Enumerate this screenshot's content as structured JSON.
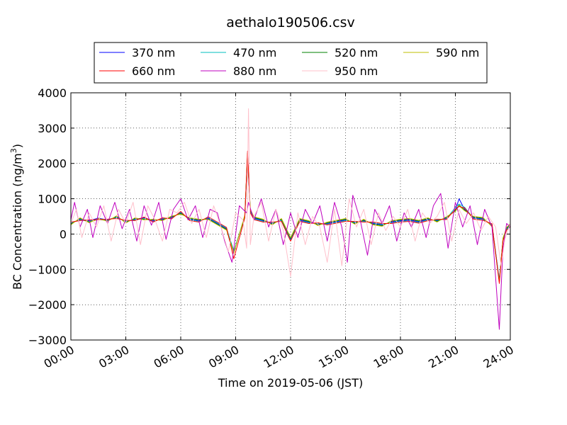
{
  "chart_data": {
    "type": "line",
    "title": "aethalo190506.csv",
    "xlabel": "Time on 2019-05-06 (JST)",
    "ylabel_main": "BC Concentration (ng/m",
    "ylabel_sup": "3",
    "ylabel_close": ")",
    "xlim": [
      0,
      24
    ],
    "ylim": [
      -3000,
      4000
    ],
    "x_ticks": [
      {
        "value": 0,
        "label": "00:00"
      },
      {
        "value": 3,
        "label": "03:00"
      },
      {
        "value": 6,
        "label": "06:00"
      },
      {
        "value": 9,
        "label": "09:00"
      },
      {
        "value": 12,
        "label": "12:00"
      },
      {
        "value": 15,
        "label": "15:00"
      },
      {
        "value": 18,
        "label": "18:00"
      },
      {
        "value": 21,
        "label": "21:00"
      },
      {
        "value": 24,
        "label": "24:00"
      }
    ],
    "y_ticks": [
      {
        "value": 4000,
        "label": "4000"
      },
      {
        "value": 3000,
        "label": "3000"
      },
      {
        "value": 2000,
        "label": "2000"
      },
      {
        "value": 1000,
        "label": "1000"
      },
      {
        "value": 0,
        "label": "0"
      },
      {
        "value": -1000,
        "label": "−1000"
      },
      {
        "value": -2000,
        "label": "−2000"
      },
      {
        "value": -3000,
        "label": "−3000"
      }
    ],
    "grid": true,
    "legend_position": "top",
    "legend_columns": 4,
    "series": [
      {
        "name": "370 nm",
        "color": "#0000ff",
        "x": [
          0,
          0.5,
          1,
          1.5,
          2,
          2.5,
          3,
          3.5,
          4,
          4.5,
          5,
          5.5,
          6,
          6.5,
          7,
          7.5,
          8,
          8.5,
          8.9,
          9.5,
          9.65,
          9.8,
          10,
          10.5,
          11,
          11.5,
          12,
          12.5,
          13,
          13.5,
          14,
          14.5,
          15,
          15.5,
          16,
          16.5,
          17,
          17.5,
          18,
          18.5,
          19,
          19.5,
          20,
          20.5,
          21,
          21.2,
          21.5,
          22,
          22.5,
          23,
          23.4,
          23.6,
          23.8,
          24
        ],
        "y": [
          300,
          420,
          380,
          450,
          400,
          480,
          350,
          420,
          460,
          380,
          420,
          470,
          600,
          420,
          380,
          450,
          300,
          150,
          -500,
          500,
          2200,
          650,
          450,
          380,
          300,
          400,
          -150,
          400,
          340,
          280,
          300,
          350,
          400,
          320,
          380,
          300,
          260,
          340,
          380,
          400,
          350,
          420,
          380,
          450,
          680,
          1000,
          700,
          460,
          430,
          250,
          -1300,
          -150,
          150,
          250
        ]
      },
      {
        "name": "470 nm",
        "color": "#00bfbf",
        "x": [
          0,
          0.5,
          1,
          1.5,
          2,
          2.5,
          3,
          3.5,
          4,
          4.5,
          5,
          5.5,
          6,
          6.5,
          7,
          7.5,
          8,
          8.5,
          8.9,
          9.5,
          9.65,
          9.8,
          10,
          10.5,
          11,
          11.5,
          12,
          12.5,
          13,
          13.5,
          14,
          14.5,
          15,
          15.5,
          16,
          16.5,
          17,
          17.5,
          18,
          18.5,
          19,
          19.5,
          20,
          20.5,
          21,
          21.2,
          21.5,
          22,
          22.5,
          23,
          23.4,
          23.6,
          23.8,
          24
        ],
        "y": [
          320,
          400,
          360,
          430,
          410,
          460,
          370,
          400,
          440,
          360,
          440,
          450,
          620,
          400,
          360,
          470,
          320,
          170,
          -480,
          480,
          2300,
          620,
          430,
          360,
          320,
          380,
          -180,
          380,
          320,
          300,
          280,
          330,
          380,
          340,
          360,
          320,
          280,
          320,
          360,
          380,
          330,
          400,
          400,
          430,
          750,
          850,
          760,
          440,
          410,
          270,
          -1320,
          -170,
          130,
          230
        ]
      },
      {
        "name": "520 nm",
        "color": "#008000",
        "x": [
          0,
          0.5,
          1,
          1.5,
          2,
          2.5,
          3,
          3.5,
          4,
          4.5,
          5,
          5.5,
          6,
          6.5,
          7,
          7.5,
          8,
          8.5,
          8.9,
          9.5,
          9.65,
          9.8,
          10,
          10.5,
          11,
          11.5,
          12,
          12.5,
          13,
          13.5,
          14,
          14.5,
          15,
          15.5,
          16,
          16.5,
          17,
          17.5,
          18,
          18.5,
          19,
          19.5,
          20,
          20.5,
          21,
          21.2,
          21.5,
          22,
          22.5,
          23,
          23.4,
          23.6,
          23.8,
          24
        ],
        "y": [
          280,
          440,
          340,
          420,
          380,
          500,
          330,
          440,
          420,
          400,
          400,
          490,
          580,
          440,
          400,
          430,
          280,
          130,
          -520,
          520,
          2250,
          680,
          470,
          400,
          280,
          420,
          -120,
          420,
          360,
          260,
          320,
          370,
          420,
          300,
          400,
          280,
          240,
          360,
          400,
          420,
          370,
          440,
          360,
          470,
          660,
          820,
          680,
          480,
          450,
          230,
          -1340,
          -130,
          170,
          270
        ]
      },
      {
        "name": "590 nm",
        "color": "#bfbf00",
        "x": [
          0,
          0.5,
          1,
          1.5,
          2,
          2.5,
          3,
          3.5,
          4,
          4.5,
          5,
          5.5,
          6,
          6.5,
          7,
          7.5,
          8,
          8.5,
          8.9,
          9.5,
          9.65,
          9.8,
          10,
          10.5,
          11,
          11.5,
          12,
          12.5,
          13,
          13.5,
          14,
          14.5,
          15,
          15.5,
          16,
          16.5,
          17,
          17.5,
          18,
          18.5,
          19,
          19.5,
          20,
          20.5,
          21,
          21.2,
          21.5,
          22,
          22.5,
          23,
          23.4,
          23.6,
          23.8,
          24
        ],
        "y": [
          260,
          460,
          320,
          440,
          360,
          520,
          310,
          460,
          400,
          420,
          380,
          510,
          560,
          460,
          420,
          410,
          260,
          110,
          -540,
          540,
          2280,
          700,
          490,
          420,
          260,
          440,
          -100,
          440,
          380,
          240,
          340,
          390,
          440,
          280,
          420,
          260,
          220,
          380,
          420,
          440,
          390,
          460,
          340,
          490,
          640,
          800,
          660,
          500,
          470,
          210,
          -1360,
          -110,
          190,
          290
        ]
      },
      {
        "name": "660 nm",
        "color": "#ff0000",
        "x": [
          0,
          0.5,
          1,
          1.5,
          2,
          2.5,
          3,
          3.5,
          4,
          4.5,
          5,
          5.5,
          6,
          6.5,
          7,
          7.5,
          8,
          8.5,
          8.9,
          9.5,
          9.65,
          9.8,
          10,
          10.5,
          11,
          11.5,
          12,
          12.5,
          13,
          13.5,
          14,
          14.5,
          15,
          15.5,
          16,
          16.5,
          17,
          17.5,
          18,
          18.5,
          19,
          19.5,
          20,
          20.5,
          21,
          21.2,
          21.5,
          22,
          22.5,
          23,
          23.4,
          23.6,
          23.8,
          24
        ],
        "y": [
          340,
          380,
          400,
          410,
          420,
          440,
          390,
          380,
          480,
          340,
          460,
          430,
          640,
          380,
          340,
          490,
          340,
          190,
          -700,
          460,
          2350,
          600,
          410,
          340,
          340,
          360,
          -200,
          360,
          300,
          320,
          260,
          310,
          360,
          360,
          340,
          340,
          300,
          300,
          340,
          360,
          310,
          380,
          420,
          410,
          700,
          780,
          740,
          420,
          390,
          290,
          -1400,
          -190,
          110,
          210
        ]
      },
      {
        "name": "880 nm",
        "color": "#bf00bf",
        "x": [
          0,
          0.2,
          0.5,
          0.9,
          1.2,
          1.6,
          2,
          2.4,
          2.8,
          3.2,
          3.6,
          4,
          4.4,
          4.8,
          5.2,
          5.6,
          6,
          6.4,
          6.8,
          7.2,
          7.6,
          8,
          8.4,
          8.8,
          9.2,
          9.6,
          9.7,
          10,
          10.4,
          10.8,
          11.2,
          11.6,
          12,
          12.4,
          12.8,
          13.2,
          13.6,
          14,
          14.4,
          14.8,
          15.1,
          15.4,
          15.8,
          16.2,
          16.6,
          17,
          17.4,
          17.8,
          18.2,
          18.6,
          19,
          19.4,
          19.8,
          20.2,
          20.6,
          21,
          21.4,
          21.8,
          22.2,
          22.6,
          23,
          23.4,
          23.5,
          23.6,
          23.8,
          24
        ],
        "y": [
          400,
          900,
          200,
          700,
          -100,
          800,
          300,
          900,
          150,
          700,
          -200,
          800,
          250,
          900,
          -150,
          700,
          1000,
          400,
          800,
          -100,
          700,
          600,
          -200,
          -800,
          800,
          600,
          900,
          400,
          1000,
          200,
          700,
          -300,
          600,
          -100,
          700,
          300,
          800,
          -200,
          900,
          200,
          -800,
          1100,
          400,
          -600,
          700,
          300,
          800,
          -200,
          600,
          200,
          700,
          -100,
          800,
          1150,
          -400,
          900,
          200,
          800,
          -300,
          700,
          200,
          -2700,
          -1500,
          -400,
          300,
          200
        ]
      },
      {
        "name": "950 nm",
        "color": "#ffc0cb",
        "x": [
          0,
          0.3,
          0.6,
          1,
          1.4,
          1.8,
          2.2,
          2.6,
          3,
          3.4,
          3.8,
          4.2,
          4.6,
          5,
          5.4,
          5.8,
          6.2,
          6.6,
          7,
          7.4,
          7.8,
          8.2,
          8.6,
          9,
          9.4,
          9.6,
          9.7,
          9.8,
          10,
          10.4,
          10.8,
          11.2,
          11.6,
          12,
          12.4,
          12.8,
          13.2,
          13.6,
          14,
          14.4,
          14.8,
          15.2,
          15.6,
          16,
          16.4,
          16.8,
          17.2,
          17.6,
          18,
          18.4,
          18.8,
          19.2,
          19.6,
          20,
          20.4,
          20.8,
          21.2,
          21.6,
          22,
          22.4,
          22.8,
          23.2,
          23.5,
          23.7,
          24
        ],
        "y": [
          300,
          700,
          -100,
          600,
          200,
          800,
          -200,
          700,
          300,
          900,
          -300,
          800,
          400,
          -200,
          700,
          600,
          900,
          300,
          700,
          -100,
          800,
          200,
          -500,
          600,
          400,
          -400,
          3550,
          -300,
          500,
          900,
          -200,
          700,
          100,
          -1200,
          600,
          -300,
          500,
          200,
          -800,
          700,
          -900,
          1000,
          200,
          700,
          -300,
          600,
          100,
          500,
          200,
          700,
          -200,
          600,
          300,
          500,
          900,
          -200,
          700,
          300,
          600,
          100,
          500,
          200,
          -900,
          -150,
          300
        ]
      }
    ]
  }
}
